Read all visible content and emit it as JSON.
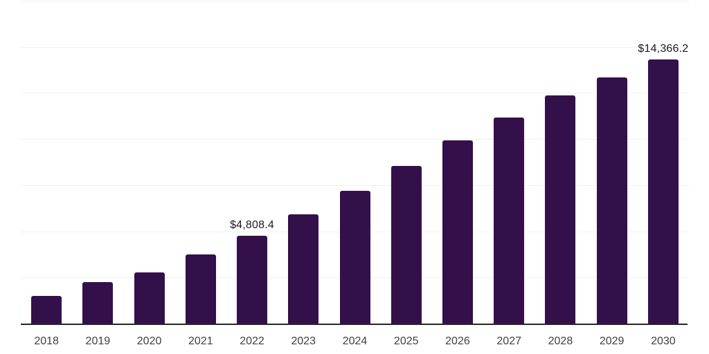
{
  "chart_data": {
    "type": "bar",
    "title": "",
    "xlabel": "",
    "ylabel": "",
    "categories": [
      "2018",
      "2019",
      "2020",
      "2021",
      "2022",
      "2023",
      "2024",
      "2025",
      "2026",
      "2027",
      "2028",
      "2029",
      "2030"
    ],
    "values": [
      1540,
      2290,
      2810,
      3780,
      4808.4,
      5960,
      7230,
      8580,
      9970,
      11200,
      12400,
      13380,
      14366.2
    ],
    "data_labels": [
      "",
      "",
      "",
      "",
      "$4,808.4",
      "",
      "",
      "",
      "",
      "",
      "",
      "",
      "$14,366.2"
    ],
    "ylim": [
      0,
      17500
    ],
    "gridline_interval": 2500,
    "grid": true,
    "legend": false,
    "y_tick_labels_visible": false,
    "colors": {
      "bar": "#34104B",
      "gridline": "#f0f0f0",
      "axis_line": "#262626",
      "tick_label": "#404040",
      "data_label": "#1a1a1a",
      "background": "#ffffff"
    }
  }
}
